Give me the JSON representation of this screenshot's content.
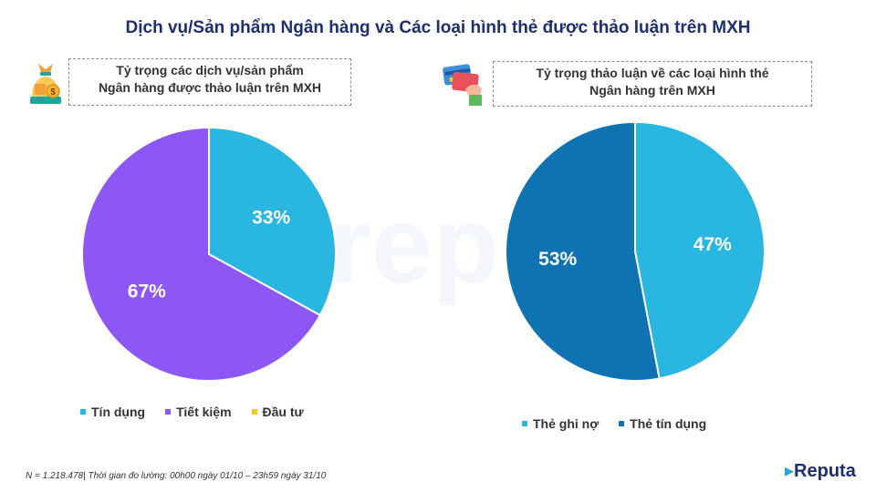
{
  "title": "Dịch vụ/Sản phẩm Ngân hàng và Các loại hình thẻ được thảo luận trên MXH",
  "watermark": "repu",
  "footnote": "N = 1.218.478| Thời gian đo lường: 00h00 ngày 01/10 – 23h59 ngày 31/10",
  "logo": {
    "text": "Reputa"
  },
  "colors": {
    "title": "#1d2f6f",
    "cyan": "#29b6e0",
    "purple": "#8c57f5",
    "yellow": "#f5c518",
    "navy": "#0f72b1"
  },
  "icons": {
    "left": "money-bag-icon",
    "right": "credit-card-hand-icon"
  },
  "chart_data": [
    {
      "type": "pie",
      "title": "Tỷ trọng các dịch vụ/sản phẩm\nNgân hàng được thảo luận trên MXH",
      "title_lines": [
        "Tỷ trọng các dịch vụ/sản phẩm",
        "Ngân hàng được thảo luận trên MXH"
      ],
      "categories": [
        "Tín dụng",
        "Tiết kiệm",
        "Đầu tư"
      ],
      "values": [
        33,
        67,
        0
      ],
      "labels": [
        "33%",
        "67%",
        ""
      ],
      "colors": [
        "#29b6e0",
        "#8c57f5",
        "#f5c518"
      ],
      "legend": "bottom"
    },
    {
      "type": "pie",
      "title": "Tỷ trọng thảo luận về các loại hình thẻ\nNgân hàng trên MXH",
      "title_lines": [
        "Tỷ trọng thảo luận về các loại hình thẻ",
        "Ngân hàng trên MXH"
      ],
      "categories": [
        "Thẻ ghi nợ",
        "Thẻ tín dụng"
      ],
      "values": [
        47,
        53
      ],
      "labels": [
        "47%",
        "53%"
      ],
      "colors": [
        "#29b6e0",
        "#0f72b1"
      ],
      "legend": "bottom"
    }
  ]
}
